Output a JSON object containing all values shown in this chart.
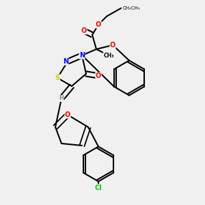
{
  "background_color": "#f0f0f0",
  "figsize": [
    3.0,
    3.0
  ],
  "dpi": 100,
  "title": "",
  "atom_colors": {
    "C": "#000000",
    "N": "#0000ff",
    "O": "#ff0000",
    "S": "#cccc00",
    "Cl": "#00cc00",
    "H": "#888888"
  }
}
